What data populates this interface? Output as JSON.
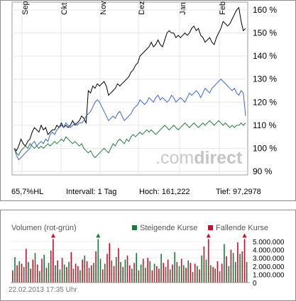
{
  "chart_data": [
    {
      "type": "line",
      "x_ticks": [
        "Sep",
        "Okt",
        "Nov",
        "Dez",
        "Jan",
        "Feb"
      ],
      "y_ticks": [
        "160 %",
        "150 %",
        "140 %",
        "130 %",
        "120 %",
        "110 %",
        "100 %",
        "90 %"
      ],
      "ylim": [
        90,
        162
      ],
      "grid": true,
      "series": [
        {
          "color": "#000000",
          "values": [
            100,
            99,
            101,
            104,
            102,
            101,
            103,
            104,
            107,
            109,
            108,
            107,
            110,
            108,
            109,
            106,
            107,
            108,
            108,
            110,
            109,
            111,
            109,
            110,
            109,
            110,
            112,
            110,
            111,
            112,
            114,
            113,
            111,
            125,
            124,
            127,
            126,
            128,
            127,
            128,
            129,
            127,
            123,
            124,
            125,
            126,
            128,
            127,
            128,
            129,
            130,
            131,
            133,
            134,
            136,
            137,
            140,
            141,
            142,
            143,
            144,
            146,
            144,
            145,
            147,
            145,
            144,
            147,
            150,
            151,
            150,
            150,
            148,
            149,
            148,
            149,
            150,
            149,
            150,
            152,
            153,
            151,
            152,
            149,
            148,
            146,
            147,
            148,
            146,
            145,
            148,
            150,
            152,
            155,
            154,
            153,
            154,
            156,
            158,
            160,
            161,
            155,
            151,
            152
          ]
        },
        {
          "color": "#3a66c8",
          "values": [
            100,
            97,
            95,
            96,
            97,
            98,
            99,
            100,
            102,
            103,
            101,
            102,
            103,
            102,
            104,
            103,
            106,
            107,
            106,
            108,
            109,
            110,
            109,
            111,
            110,
            109,
            110,
            111,
            110,
            111,
            111,
            112,
            114,
            115,
            116,
            118,
            120,
            121,
            120,
            118,
            116,
            114,
            112,
            113,
            114,
            113,
            115,
            116,
            114,
            112,
            113,
            114,
            115,
            117,
            118,
            119,
            121,
            120,
            119,
            120,
            122,
            121,
            120,
            122,
            123,
            121,
            122,
            121,
            120,
            121,
            123,
            122,
            120,
            121,
            122,
            121,
            120,
            122,
            124,
            123,
            124,
            125,
            124,
            122,
            124,
            126,
            125,
            124,
            126,
            127,
            128,
            129,
            130,
            129,
            128,
            127,
            126,
            125,
            126,
            124,
            123,
            125,
            124,
            114
          ]
        },
        {
          "color": "#2a7d45",
          "values": [
            100,
            98,
            97,
            99,
            100,
            101,
            100,
            102,
            101,
            100,
            101,
            100,
            101,
            100,
            101,
            102,
            101,
            102,
            103,
            102,
            103,
            104,
            103,
            105,
            104,
            103,
            102,
            103,
            102,
            101,
            102,
            100,
            99,
            98,
            99,
            97,
            96,
            97,
            98,
            99,
            100,
            99,
            98,
            100,
            102,
            101,
            103,
            104,
            103,
            102,
            104,
            103,
            105,
            106,
            105,
            106,
            107,
            106,
            107,
            108,
            107,
            108,
            107,
            106,
            107,
            108,
            109,
            110,
            109,
            108,
            109,
            110,
            109,
            108,
            109,
            110,
            111,
            110,
            109,
            110,
            111,
            110,
            109,
            110,
            111,
            110,
            111,
            112,
            111,
            110,
            111,
            112,
            111,
            110,
            111,
            110,
            109,
            110,
            109,
            110,
            110,
            111,
            110,
            111
          ]
        }
      ]
    },
    {
      "type": "bar",
      "title": "Volumen (rot-grün)",
      "y_ticks": [
        "5.000.000",
        "4.000.000",
        "3.000.000",
        "2.000.000",
        "1.000.000",
        "0"
      ],
      "ylim": [
        0,
        5300000
      ],
      "legend": [
        {
          "label": "Steigende Kurse",
          "color": "#1a7a3c"
        },
        {
          "label": "Fallende Kurse",
          "color": "#c8102e"
        }
      ],
      "values": [
        1500000,
        3100000,
        2100000,
        2600000,
        2300000,
        1900000,
        4100000,
        2500000,
        1700000,
        2800000,
        3600000,
        2200000,
        1400000,
        2900000,
        3400000,
        1800000,
        2400000,
        3900000,
        5300000,
        2100000,
        2700000,
        1600000,
        3000000,
        2200000,
        1900000,
        2500000,
        3700000,
        1700000,
        2300000,
        2000000,
        1500000,
        2800000,
        3300000,
        2600000,
        1800000,
        2100000,
        2400000,
        3800000,
        5300000,
        2900000,
        1600000,
        2300000,
        3500000,
        4800000,
        2700000,
        2000000,
        3100000,
        4200000,
        2500000,
        1900000,
        2800000,
        3300000,
        2100000,
        1700000,
        2400000,
        3600000,
        1500000,
        2200000,
        2900000,
        1800000,
        3000000,
        2600000,
        1500000,
        2300000,
        2000000,
        1700000,
        3500000,
        2400000,
        1900000,
        2800000,
        1600000,
        2200000,
        3700000,
        2500000,
        2000000,
        2900000,
        2100000,
        1800000,
        2700000,
        2400000,
        1300000,
        2300000,
        2000000,
        1600000,
        3300000,
        4400000,
        2800000,
        5300000,
        2100000,
        1900000,
        1700000,
        2600000,
        1400000,
        2300000,
        4700000,
        3200000,
        2000000,
        4000000,
        3600000,
        2500000,
        4900000,
        3500000,
        3800000,
        5300000,
        2500000
      ],
      "colors": [
        "r",
        "g",
        "r",
        "g",
        "r",
        "g",
        "r",
        "g",
        "r",
        "r",
        "g",
        "r",
        "g",
        "r",
        "g",
        "r",
        "g",
        "r",
        "r",
        "g",
        "r",
        "g",
        "r",
        "g",
        "r",
        "g",
        "r",
        "g",
        "r",
        "r",
        "g",
        "r",
        "g",
        "r",
        "g",
        "r",
        "g",
        "r",
        "g",
        "g",
        "r",
        "g",
        "r",
        "r",
        "g",
        "r",
        "g",
        "r",
        "g",
        "r",
        "g",
        "r",
        "r",
        "g",
        "r",
        "g",
        "r",
        "g",
        "r",
        "g",
        "r",
        "g",
        "r",
        "g",
        "r",
        "r",
        "g",
        "r",
        "g",
        "r",
        "g",
        "r",
        "g",
        "r",
        "g",
        "r",
        "g",
        "r",
        "g",
        "r",
        "g",
        "r",
        "g",
        "r",
        "g",
        "r",
        "g",
        "r",
        "g",
        "r",
        "g",
        "r",
        "g",
        "r",
        "g",
        "r",
        "g",
        "r",
        "g",
        "g",
        "r",
        "g",
        "r",
        "r",
        "g"
      ],
      "overflow": [
        false,
        false,
        false,
        false,
        false,
        false,
        false,
        false,
        false,
        false,
        false,
        false,
        false,
        false,
        false,
        false,
        false,
        false,
        true,
        false,
        false,
        false,
        false,
        false,
        false,
        false,
        false,
        false,
        false,
        false,
        false,
        false,
        false,
        false,
        false,
        false,
        false,
        false,
        true,
        false,
        false,
        false,
        false,
        false,
        false,
        false,
        false,
        false,
        false,
        false,
        false,
        false,
        false,
        false,
        false,
        false,
        false,
        false,
        false,
        false,
        false,
        false,
        false,
        false,
        false,
        false,
        false,
        false,
        false,
        false,
        false,
        false,
        false,
        false,
        false,
        false,
        false,
        false,
        false,
        false,
        false,
        false,
        false,
        false,
        false,
        false,
        false,
        true,
        false,
        false,
        false,
        false,
        false,
        false,
        false,
        false,
        false,
        false,
        false,
        false,
        false,
        false,
        false,
        true,
        false
      ]
    }
  ],
  "stats": {
    "hl": "65,7%HL",
    "interval": "Intervall: 1 Tag",
    "hoch": "Hoch:  161,222",
    "tief": "Tief: 97,2978"
  },
  "watermark": {
    "light": ".com",
    "bold": "direct"
  },
  "timestamp": "22.02.2013 17:35 Uhr"
}
